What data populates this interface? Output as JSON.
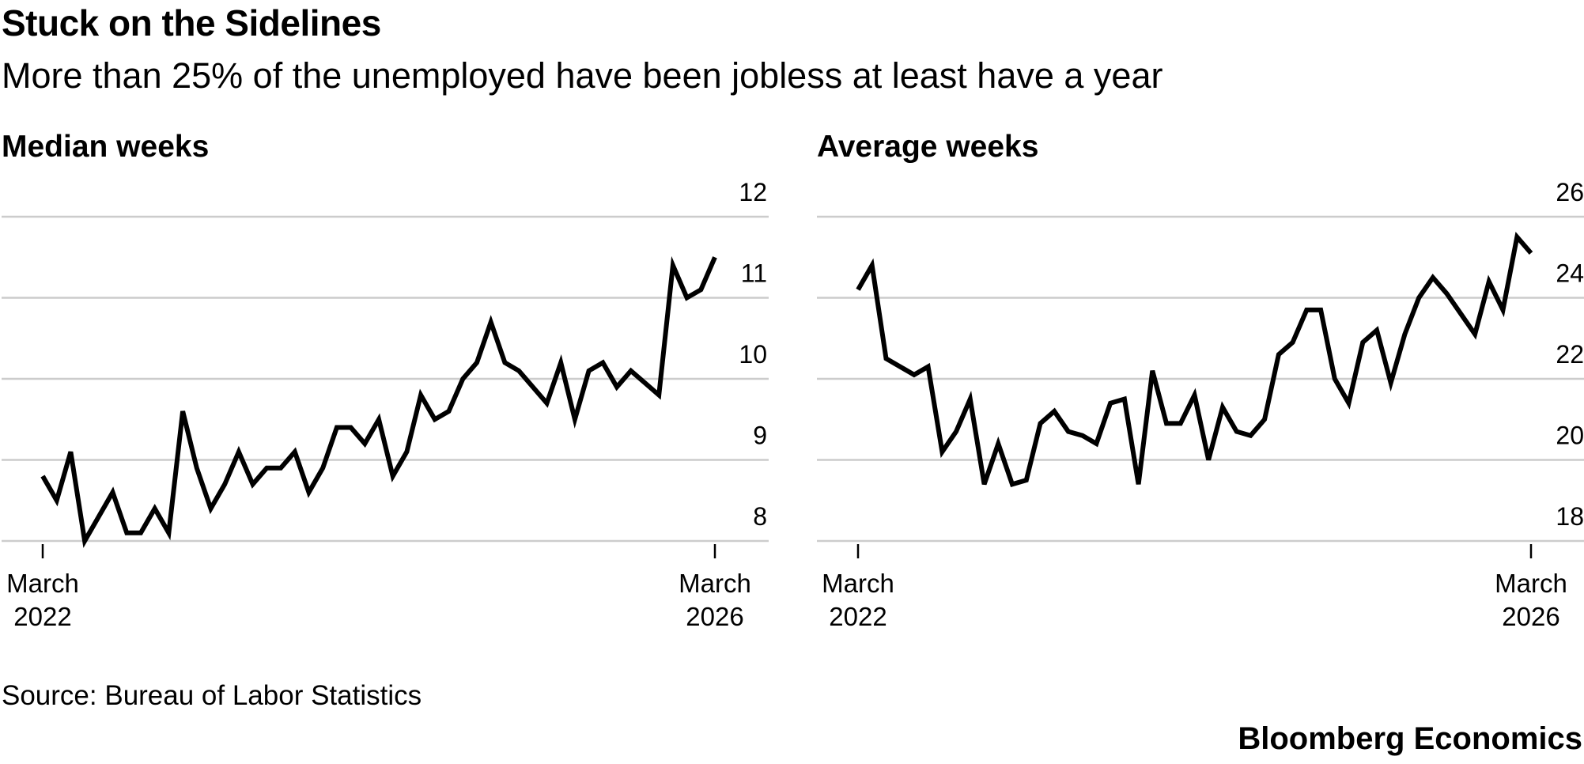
{
  "title": "Stuck on the Sidelines",
  "subtitle": "More than 25% of the unemployed have been jobless at least have a year",
  "source": "Source: Bureau of Labor Statistics",
  "brand": "Bloomberg Economics",
  "colors": {
    "line": "#000000",
    "grid": "#cccccc",
    "axis": "#000000",
    "background": "#ffffff"
  },
  "chart_data": [
    {
      "type": "line",
      "title": "Median weeks",
      "xlabel": "",
      "ylabel": "",
      "x_start_label": [
        "March",
        "2022"
      ],
      "x_end_label": [
        "March",
        "2026"
      ],
      "ylim": [
        8,
        12
      ],
      "yticks": [
        8,
        9,
        10,
        11,
        12
      ],
      "y_axis_side": "right",
      "grid": true,
      "series": [
        {
          "name": "Median weeks",
          "values": [
            8.8,
            8.5,
            9.1,
            8.0,
            8.3,
            8.6,
            8.1,
            8.1,
            8.4,
            8.1,
            9.6,
            8.9,
            8.4,
            8.7,
            9.1,
            8.7,
            8.9,
            8.9,
            9.1,
            8.6,
            8.9,
            9.4,
            9.4,
            9.2,
            9.5,
            8.8,
            9.1,
            9.8,
            9.5,
            9.6,
            10.0,
            10.2,
            10.7,
            10.2,
            10.1,
            9.9,
            9.7,
            10.2,
            9.5,
            10.1,
            10.2,
            9.9,
            10.1,
            9.95,
            9.8,
            11.4,
            11.0,
            11.1,
            11.5
          ]
        }
      ]
    },
    {
      "type": "line",
      "title": "Average weeks",
      "xlabel": "",
      "ylabel": "",
      "x_start_label": [
        "March",
        "2022"
      ],
      "x_end_label": [
        "March",
        "2026"
      ],
      "ylim": [
        18,
        26
      ],
      "yticks": [
        18,
        20,
        22,
        24,
        26
      ],
      "y_axis_side": "right",
      "grid": true,
      "series": [
        {
          "name": "Average weeks",
          "values": [
            24.2,
            24.8,
            22.5,
            22.3,
            22.1,
            22.3,
            20.2,
            20.7,
            21.5,
            19.4,
            20.4,
            19.4,
            19.5,
            20.9,
            21.2,
            20.7,
            20.6,
            20.4,
            21.4,
            21.5,
            19.4,
            22.2,
            20.9,
            20.9,
            21.6,
            20.0,
            21.3,
            20.7,
            20.6,
            21.0,
            22.6,
            22.9,
            23.7,
            23.7,
            22.0,
            21.4,
            22.9,
            23.2,
            21.9,
            23.1,
            24.0,
            24.5,
            24.1,
            23.6,
            23.1,
            24.4,
            23.7,
            25.5,
            25.1
          ]
        }
      ]
    }
  ]
}
